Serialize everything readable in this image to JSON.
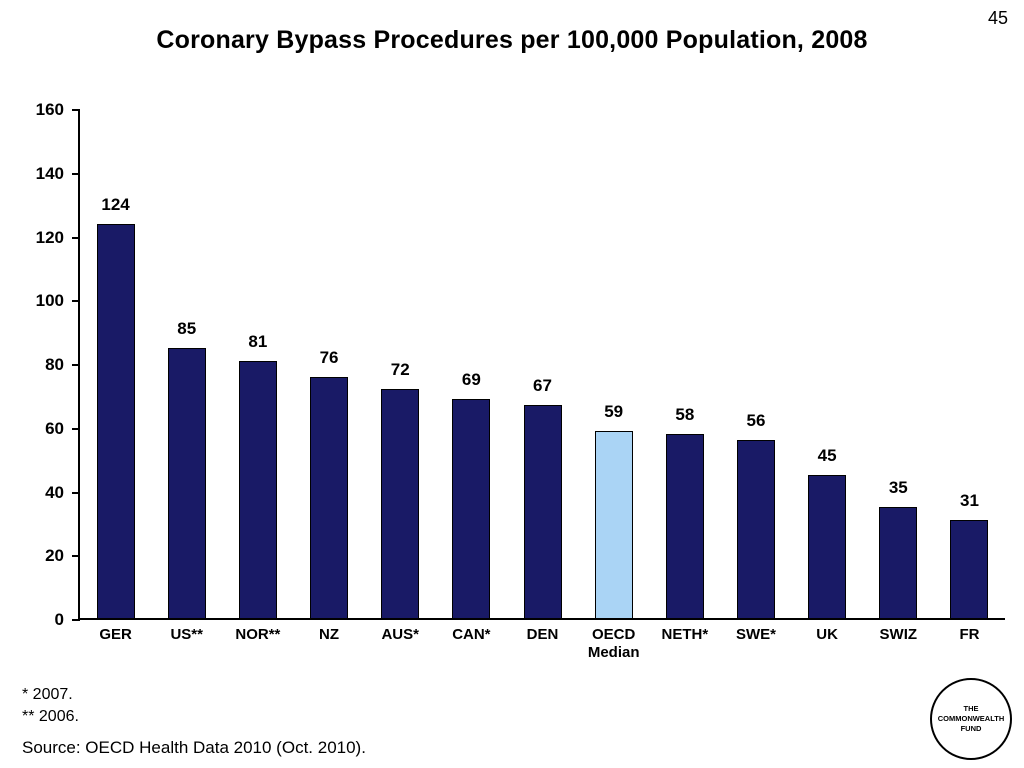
{
  "page": {
    "number": "45"
  },
  "title": "Coronary Bypass Procedures per 100,000 Population, 2008",
  "footnotes": {
    "line1": "* 2007.",
    "line2": "** 2006.",
    "source": "Source: OECD Health Data 2010 (Oct. 2010)."
  },
  "logo": {
    "line1": "THE",
    "line2": "COMMONWEALTH",
    "line3": "FUND"
  },
  "colors": {
    "bar": "#191a66",
    "highlight": "#aad4f5",
    "axis": "#000000"
  },
  "chart_data": {
    "type": "bar",
    "title": "Coronary Bypass Procedures per 100,000 Population, 2008",
    "categories": [
      "GER",
      "US**",
      "NOR**",
      "NZ",
      "AUS*",
      "CAN*",
      "DEN",
      "OECD\nMedian",
      "NETH*",
      "SWE*",
      "UK",
      "SWIZ",
      "FR"
    ],
    "values": [
      124,
      85,
      81,
      76,
      72,
      69,
      67,
      59,
      58,
      56,
      45,
      35,
      31
    ],
    "highlight_index": 7,
    "highlight_label": "OECD Median",
    "xlabel": "",
    "ylabel": "",
    "ylim": [
      0,
      160
    ],
    "yticks": [
      0,
      20,
      40,
      60,
      80,
      100,
      120,
      140,
      160
    ],
    "grid": false,
    "legend": false
  }
}
